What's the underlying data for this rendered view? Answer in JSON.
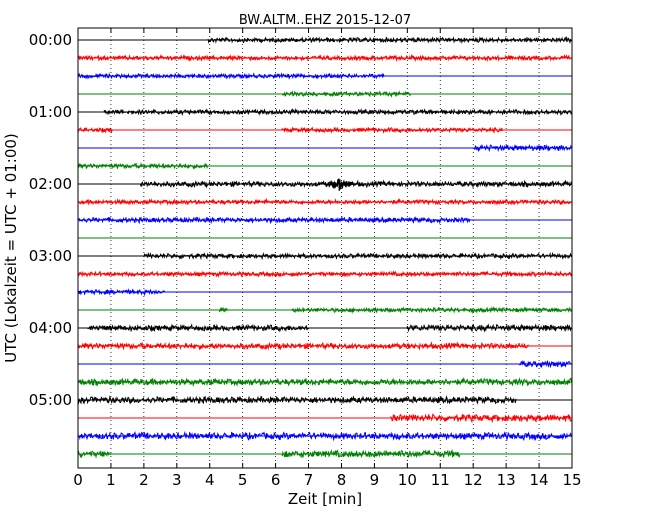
{
  "chart_data": {
    "type": "line",
    "title": "BW.ALTM..EHZ 2015-12-07",
    "xlabel": "Zeit  [min]",
    "ylabel": "UTC (Lokalzeit = UTC + 01:00)",
    "xlim": [
      0,
      15
    ],
    "x_ticks": [
      "0",
      "1",
      "2",
      "3",
      "4",
      "5",
      "6",
      "7",
      "8",
      "9",
      "10",
      "11",
      "12",
      "13",
      "14",
      "15"
    ],
    "y_tick_labels": [
      "00:00",
      "01:00",
      "02:00",
      "03:00",
      "04:00",
      "05:00"
    ],
    "y_tick_rows": [
      0,
      4,
      8,
      12,
      16,
      20
    ],
    "grid": "vertical-dotted",
    "colors": [
      "#000000",
      "#ff0000",
      "#0000ff",
      "#008000"
    ],
    "traces": [
      {
        "row": 0,
        "color": "#000000",
        "segments": [
          [
            3.95,
            15,
            2.6
          ]
        ]
      },
      {
        "row": 1,
        "color": "#ff0000",
        "segments": [
          [
            0,
            15,
            2.4
          ]
        ]
      },
      {
        "row": 2,
        "color": "#0000ff",
        "segments": [
          [
            0,
            9.3,
            2.4
          ]
        ]
      },
      {
        "row": 3,
        "color": "#008000",
        "segments": [
          [
            6.2,
            10.1,
            2.4
          ]
        ]
      },
      {
        "row": 4,
        "color": "#000000",
        "segments": [
          [
            0.8,
            15,
            2.6
          ]
        ]
      },
      {
        "row": 5,
        "color": "#ff0000",
        "segments": [
          [
            0,
            1.05,
            2.4
          ],
          [
            6.2,
            12.9,
            2.4
          ]
        ]
      },
      {
        "row": 6,
        "color": "#0000ff",
        "segments": [
          [
            12.05,
            15,
            3.2
          ]
        ]
      },
      {
        "row": 7,
        "color": "#008000",
        "segments": [
          [
            0,
            3.95,
            2.6
          ]
        ]
      },
      {
        "row": 8,
        "color": "#000000",
        "segments": [
          [
            1.9,
            15,
            3.0
          ]
        ]
      },
      {
        "row": 9,
        "color": "#ff0000",
        "segments": [
          [
            0,
            15,
            2.4
          ]
        ]
      },
      {
        "row": 10,
        "color": "#0000ff",
        "segments": [
          [
            0,
            11.9,
            2.8
          ]
        ]
      },
      {
        "row": 11,
        "color": "#008000",
        "segments": []
      },
      {
        "row": 12,
        "color": "#000000",
        "segments": [
          [
            2.0,
            15,
            2.6
          ]
        ]
      },
      {
        "row": 13,
        "color": "#ff0000",
        "segments": [
          [
            0,
            15,
            2.4
          ]
        ]
      },
      {
        "row": 14,
        "color": "#0000ff",
        "segments": [
          [
            0,
            2.65,
            2.6
          ]
        ]
      },
      {
        "row": 15,
        "color": "#008000",
        "segments": [
          [
            4.3,
            4.55,
            2.4
          ],
          [
            6.5,
            15,
            2.4
          ]
        ]
      },
      {
        "row": 16,
        "color": "#000000",
        "segments": [
          [
            0.3,
            7.0,
            3.2
          ],
          [
            10.0,
            15,
            3.6
          ]
        ]
      },
      {
        "row": 17,
        "color": "#ff0000",
        "segments": [
          [
            0,
            13.7,
            3.2
          ]
        ]
      },
      {
        "row": 18,
        "color": "#0000ff",
        "segments": [
          [
            13.4,
            15,
            3.4
          ]
        ]
      },
      {
        "row": 19,
        "color": "#008000",
        "segments": [
          [
            0,
            15,
            3.6
          ]
        ]
      },
      {
        "row": 20,
        "color": "#000000",
        "segments": [
          [
            0,
            13.3,
            3.6
          ]
        ]
      },
      {
        "row": 21,
        "color": "#ff0000",
        "segments": [
          [
            9.5,
            15,
            4.0
          ]
        ]
      },
      {
        "row": 22,
        "color": "#0000ff",
        "segments": [
          [
            0,
            15,
            3.8
          ]
        ]
      },
      {
        "row": 23,
        "color": "#008000",
        "segments": [
          [
            0,
            1.0,
            3.6
          ],
          [
            6.2,
            11.6,
            4.0
          ]
        ]
      }
    ],
    "events": [
      {
        "row": 8,
        "x": 7.92,
        "color": "#000000",
        "amplitude": 7
      }
    ]
  }
}
